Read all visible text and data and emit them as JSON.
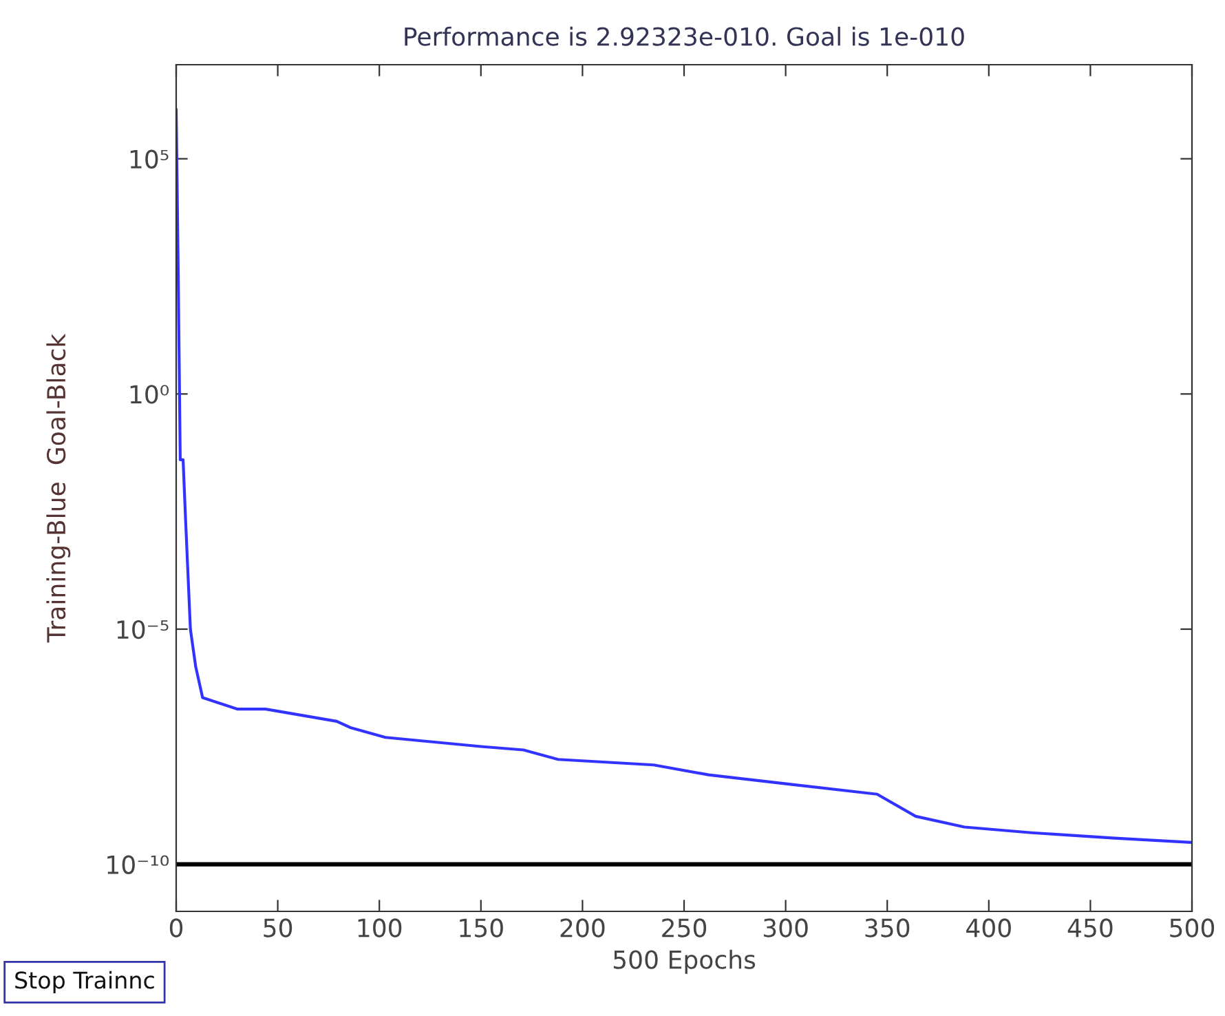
{
  "chart_data": {
    "type": "line",
    "title": "Performance is 2.92323e-010. Goal is 1e-010",
    "xlabel": "500 Epochs",
    "ylabel": "Training-Blue  Goal-Black",
    "x": [
      0,
      1,
      2,
      3.4,
      4.7,
      7,
      9.6,
      13,
      30,
      44,
      79,
      86,
      103,
      150,
      171,
      188,
      235,
      262,
      303,
      345,
      364,
      388,
      421,
      462,
      500
    ],
    "series": [
      {
        "color": "#3333ff",
        "values": [
          1100000.0,
          400,
          0.04,
          0.04,
          0.0018,
          1e-05,
          1.6e-06,
          3.5e-07,
          2e-07,
          2e-07,
          1.1e-07,
          8e-08,
          5e-08,
          3.2e-08,
          2.7e-08,
          1.7e-08,
          1.3e-08,
          8e-09,
          5e-09,
          3.1e-09,
          1.05e-09,
          6.2e-10,
          4.7e-10,
          3.6e-10,
          2.92323e-10
        ]
      }
    ],
    "log": "y",
    "xlim": [
      0,
      500
    ],
    "ylim": [
      1e-11,
      10000000.0
    ],
    "xticks": [
      0,
      50,
      100,
      150,
      200,
      250,
      300,
      350,
      400,
      450,
      500
    ],
    "yticks": [
      {
        "value": 1e-10,
        "label": "10⁻¹⁰"
      },
      {
        "value": 1e-05,
        "label": "10⁻⁵"
      },
      {
        "value": 1,
        "label": "10⁰"
      },
      {
        "value": 100000.0,
        "label": "10⁵"
      }
    ],
    "ref_lines": [
      {
        "axis": "y",
        "value": 1e-10,
        "color": "#000000"
      }
    ],
    "annotations": [
      "Stop Trainnc"
    ],
    "grid": false,
    "legend": false
  }
}
